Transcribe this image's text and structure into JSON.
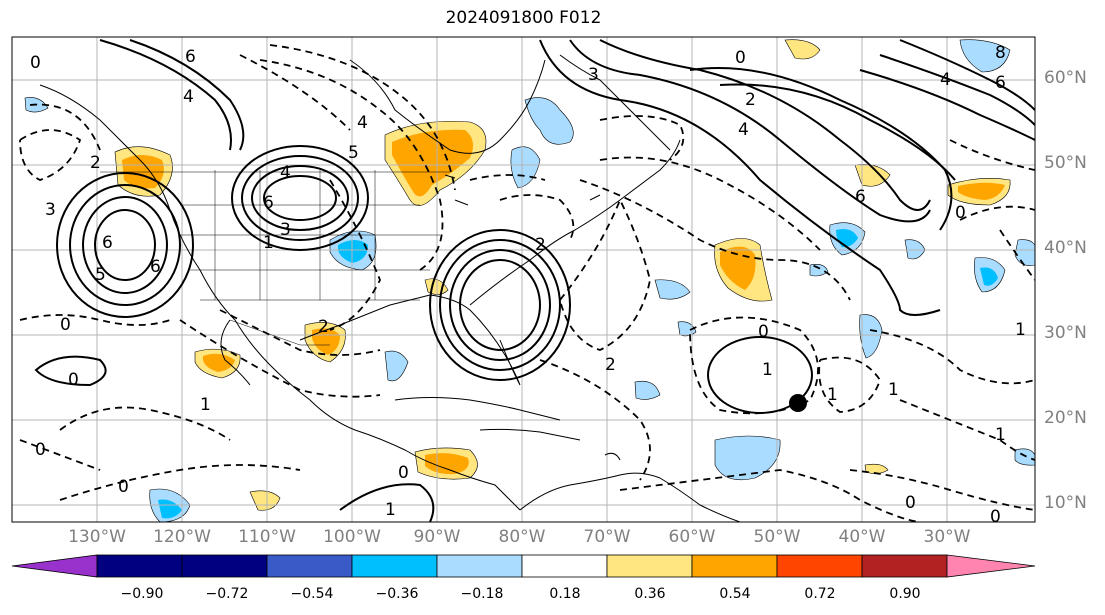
{
  "title": "2024091800 F012",
  "latitude_labels": [
    "10°N",
    "20°N",
    "30°N",
    "40°N",
    "50°N",
    "60°N"
  ],
  "longitude_labels": [
    "130°W",
    "120°W",
    "110°W",
    "100°W",
    "90°W",
    "80°W",
    "70°W",
    "60°W",
    "50°W",
    "40°W",
    "30°W"
  ],
  "colorbar": {
    "ticks": [
      "−0.90",
      "−0.72",
      "−0.54",
      "−0.36",
      "−0.18",
      "0.18",
      "0.36",
      "0.54",
      "0.72",
      "0.90"
    ],
    "colors": [
      "#9932cc",
      "#000080",
      "#3a5bc7",
      "#00bfff",
      "#aadcff",
      "#ffffff",
      "#ffe680",
      "#ffa500",
      "#ff4500",
      "#b22222",
      "#ff85b0"
    ]
  },
  "contour_labels": [
    "6",
    "4",
    "6",
    "3",
    "0",
    "2",
    "4",
    "6",
    "8",
    "4",
    "6",
    "0",
    "2",
    "3",
    "4",
    "6",
    "5",
    "3",
    "4",
    "1",
    "6",
    "5",
    "0",
    "2",
    "0",
    "1",
    "2",
    "1",
    "1",
    "0",
    "0",
    "0",
    "0",
    "1",
    "1",
    "0",
    "1",
    "1",
    "0",
    "2",
    "0"
  ],
  "marker": "station-dot"
}
